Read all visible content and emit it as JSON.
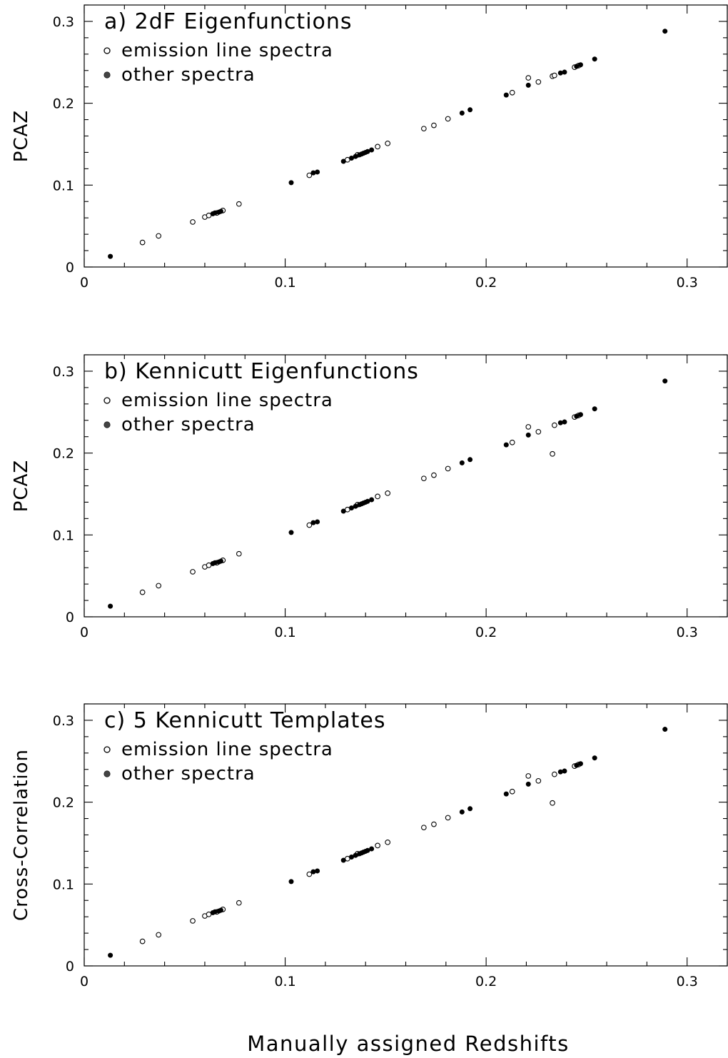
{
  "xlabel": "Manually assigned Redshifts",
  "chart_data": [
    {
      "type": "scatter",
      "title": "a) 2dF Eigenfunctions",
      "ylabel": "PCAZ",
      "xlim": [
        0,
        0.32
      ],
      "ylim": [
        0,
        0.32
      ],
      "xticks": [
        "0",
        "0.1",
        "0.2",
        "0.3"
      ],
      "yticks": [
        "0",
        "0.1",
        "0.2",
        "0.3"
      ],
      "legend": [
        "emission line spectra",
        "other spectra"
      ],
      "legend_position": "top-left",
      "series": [
        {
          "name": "emission line spectra",
          "marker": "open-circle",
          "points": [
            [
              0.029,
              0.03
            ],
            [
              0.037,
              0.038
            ],
            [
              0.054,
              0.055
            ],
            [
              0.06,
              0.061
            ],
            [
              0.062,
              0.063
            ],
            [
              0.066,
              0.066
            ],
            [
              0.069,
              0.069
            ],
            [
              0.077,
              0.077
            ],
            [
              0.112,
              0.112
            ],
            [
              0.131,
              0.131
            ],
            [
              0.136,
              0.137
            ],
            [
              0.146,
              0.147
            ],
            [
              0.151,
              0.151
            ],
            [
              0.169,
              0.169
            ],
            [
              0.174,
              0.173
            ],
            [
              0.181,
              0.181
            ],
            [
              0.213,
              0.213
            ],
            [
              0.221,
              0.231
            ],
            [
              0.226,
              0.226
            ],
            [
              0.233,
              0.233
            ],
            [
              0.234,
              0.234
            ],
            [
              0.244,
              0.244
            ],
            [
              0.246,
              0.246
            ]
          ]
        },
        {
          "name": "other spectra",
          "marker": "filled-circle",
          "points": [
            [
              0.013,
              0.013
            ],
            [
              0.064,
              0.065
            ],
            [
              0.065,
              0.066
            ],
            [
              0.067,
              0.067
            ],
            [
              0.068,
              0.068
            ],
            [
              0.103,
              0.103
            ],
            [
              0.114,
              0.115
            ],
            [
              0.116,
              0.116
            ],
            [
              0.129,
              0.129
            ],
            [
              0.133,
              0.133
            ],
            [
              0.135,
              0.135
            ],
            [
              0.137,
              0.137
            ],
            [
              0.138,
              0.138
            ],
            [
              0.139,
              0.139
            ],
            [
              0.14,
              0.14
            ],
            [
              0.141,
              0.141
            ],
            [
              0.143,
              0.143
            ],
            [
              0.188,
              0.188
            ],
            [
              0.192,
              0.192
            ],
            [
              0.21,
              0.21
            ],
            [
              0.221,
              0.222
            ],
            [
              0.237,
              0.237
            ],
            [
              0.239,
              0.238
            ],
            [
              0.245,
              0.245
            ],
            [
              0.247,
              0.247
            ],
            [
              0.254,
              0.254
            ],
            [
              0.289,
              0.288
            ]
          ]
        }
      ]
    },
    {
      "type": "scatter",
      "title": "b) Kennicutt Eigenfunctions",
      "ylabel": "PCAZ",
      "xlim": [
        0,
        0.32
      ],
      "ylim": [
        0,
        0.32
      ],
      "xticks": [
        "0",
        "0.1",
        "0.2",
        "0.3"
      ],
      "yticks": [
        "0",
        "0.1",
        "0.2",
        "0.3"
      ],
      "legend": [
        "emission line spectra",
        "other spectra"
      ],
      "legend_position": "top-left",
      "series": [
        {
          "name": "emission line spectra",
          "marker": "open-circle",
          "points": [
            [
              0.029,
              0.03
            ],
            [
              0.037,
              0.038
            ],
            [
              0.054,
              0.055
            ],
            [
              0.06,
              0.061
            ],
            [
              0.062,
              0.063
            ],
            [
              0.066,
              0.066
            ],
            [
              0.069,
              0.069
            ],
            [
              0.077,
              0.077
            ],
            [
              0.112,
              0.112
            ],
            [
              0.131,
              0.131
            ],
            [
              0.136,
              0.137
            ],
            [
              0.146,
              0.147
            ],
            [
              0.151,
              0.151
            ],
            [
              0.169,
              0.169
            ],
            [
              0.174,
              0.173
            ],
            [
              0.181,
              0.181
            ],
            [
              0.213,
              0.213
            ],
            [
              0.221,
              0.232
            ],
            [
              0.226,
              0.226
            ],
            [
              0.233,
              0.199
            ],
            [
              0.234,
              0.234
            ],
            [
              0.244,
              0.244
            ],
            [
              0.246,
              0.246
            ]
          ]
        },
        {
          "name": "other spectra",
          "marker": "filled-circle",
          "points": [
            [
              0.013,
              0.013
            ],
            [
              0.064,
              0.065
            ],
            [
              0.065,
              0.066
            ],
            [
              0.067,
              0.067
            ],
            [
              0.068,
              0.068
            ],
            [
              0.103,
              0.103
            ],
            [
              0.114,
              0.115
            ],
            [
              0.116,
              0.116
            ],
            [
              0.129,
              0.129
            ],
            [
              0.133,
              0.133
            ],
            [
              0.135,
              0.135
            ],
            [
              0.137,
              0.137
            ],
            [
              0.138,
              0.138
            ],
            [
              0.139,
              0.139
            ],
            [
              0.14,
              0.14
            ],
            [
              0.141,
              0.141
            ],
            [
              0.143,
              0.143
            ],
            [
              0.188,
              0.188
            ],
            [
              0.192,
              0.192
            ],
            [
              0.21,
              0.21
            ],
            [
              0.221,
              0.222
            ],
            [
              0.237,
              0.237
            ],
            [
              0.239,
              0.238
            ],
            [
              0.245,
              0.245
            ],
            [
              0.247,
              0.247
            ],
            [
              0.254,
              0.254
            ],
            [
              0.289,
              0.288
            ]
          ]
        }
      ]
    },
    {
      "type": "scatter",
      "title": "c) 5 Kennicutt Templates",
      "ylabel": "Cross-Correlation",
      "xlim": [
        0,
        0.32
      ],
      "ylim": [
        0,
        0.32
      ],
      "xticks": [
        "0",
        "0.1",
        "0.2",
        "0.3"
      ],
      "yticks": [
        "0",
        "0.1",
        "0.2",
        "0.3"
      ],
      "legend": [
        "emission line spectra",
        "other spectra"
      ],
      "legend_position": "top-left",
      "series": [
        {
          "name": "emission line spectra",
          "marker": "open-circle",
          "points": [
            [
              0.029,
              0.03
            ],
            [
              0.037,
              0.038
            ],
            [
              0.054,
              0.055
            ],
            [
              0.06,
              0.061
            ],
            [
              0.062,
              0.063
            ],
            [
              0.066,
              0.066
            ],
            [
              0.069,
              0.069
            ],
            [
              0.077,
              0.077
            ],
            [
              0.112,
              0.112
            ],
            [
              0.131,
              0.131
            ],
            [
              0.136,
              0.137
            ],
            [
              0.146,
              0.147
            ],
            [
              0.151,
              0.151
            ],
            [
              0.169,
              0.169
            ],
            [
              0.174,
              0.173
            ],
            [
              0.181,
              0.181
            ],
            [
              0.213,
              0.213
            ],
            [
              0.221,
              0.232
            ],
            [
              0.226,
              0.226
            ],
            [
              0.233,
              0.199
            ],
            [
              0.234,
              0.234
            ],
            [
              0.244,
              0.244
            ],
            [
              0.246,
              0.246
            ]
          ]
        },
        {
          "name": "other spectra",
          "marker": "filled-circle",
          "points": [
            [
              0.013,
              0.013
            ],
            [
              0.064,
              0.065
            ],
            [
              0.065,
              0.066
            ],
            [
              0.067,
              0.067
            ],
            [
              0.068,
              0.068
            ],
            [
              0.103,
              0.103
            ],
            [
              0.114,
              0.115
            ],
            [
              0.116,
              0.116
            ],
            [
              0.129,
              0.129
            ],
            [
              0.133,
              0.133
            ],
            [
              0.135,
              0.135
            ],
            [
              0.137,
              0.137
            ],
            [
              0.138,
              0.138
            ],
            [
              0.139,
              0.139
            ],
            [
              0.14,
              0.14
            ],
            [
              0.141,
              0.141
            ],
            [
              0.143,
              0.143
            ],
            [
              0.188,
              0.188
            ],
            [
              0.192,
              0.192
            ],
            [
              0.21,
              0.21
            ],
            [
              0.221,
              0.222
            ],
            [
              0.237,
              0.237
            ],
            [
              0.239,
              0.238
            ],
            [
              0.245,
              0.245
            ],
            [
              0.247,
              0.247
            ],
            [
              0.254,
              0.254
            ],
            [
              0.289,
              0.289
            ]
          ]
        }
      ]
    }
  ]
}
